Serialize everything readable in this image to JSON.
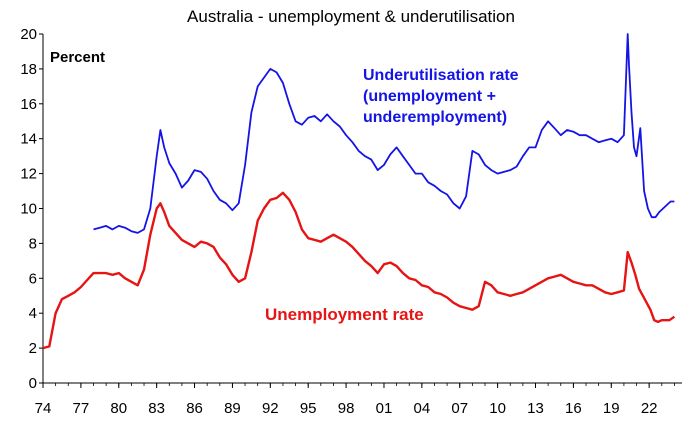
{
  "chart_data": {
    "type": "line",
    "title": "Australia - unemployment & underutilisation",
    "ylabel": "Percent",
    "xlabel": "",
    "ylim": [
      0,
      20
    ],
    "yticks": [
      0,
      2,
      4,
      6,
      8,
      10,
      12,
      14,
      16,
      18,
      20
    ],
    "xlim": [
      1974.0,
      2024.6
    ],
    "xticks": [
      {
        "year": 1974,
        "label": "74"
      },
      {
        "year": 1977,
        "label": "77"
      },
      {
        "year": 1980,
        "label": "80"
      },
      {
        "year": 1983,
        "label": "83"
      },
      {
        "year": 1986,
        "label": "86"
      },
      {
        "year": 1989,
        "label": "89"
      },
      {
        "year": 1992,
        "label": "92"
      },
      {
        "year": 1995,
        "label": "95"
      },
      {
        "year": 1998,
        "label": "98"
      },
      {
        "year": 2001,
        "label": "01"
      },
      {
        "year": 2004,
        "label": "04"
      },
      {
        "year": 2007,
        "label": "07"
      },
      {
        "year": 2010,
        "label": "10"
      },
      {
        "year": 2013,
        "label": "13"
      },
      {
        "year": 2016,
        "label": "16"
      },
      {
        "year": 2019,
        "label": "19"
      },
      {
        "year": 2022,
        "label": "22"
      }
    ],
    "grid": false,
    "series": [
      {
        "name": "Underutilisation rate (unemployment + underemployment)",
        "color": "#1414e6",
        "annotation_lines": [
          "Underutilisation rate",
          "(unemployment +",
          "underemployment)"
        ],
        "x": [
          1978.0,
          1978.5,
          1979.0,
          1979.5,
          1980.0,
          1980.5,
          1981.0,
          1981.5,
          1982.0,
          1982.5,
          1983.0,
          1983.3,
          1983.6,
          1984.0,
          1984.5,
          1985.0,
          1985.5,
          1986.0,
          1986.5,
          1987.0,
          1987.5,
          1988.0,
          1988.5,
          1989.0,
          1989.5,
          1990.0,
          1990.5,
          1991.0,
          1991.5,
          1992.0,
          1992.5,
          1993.0,
          1993.5,
          1994.0,
          1994.5,
          1995.0,
          1995.5,
          1996.0,
          1996.5,
          1997.0,
          1997.5,
          1998.0,
          1998.5,
          1999.0,
          1999.5,
          2000.0,
          2000.5,
          2001.0,
          2001.5,
          2002.0,
          2002.5,
          2003.0,
          2003.5,
          2004.0,
          2004.5,
          2005.0,
          2005.5,
          2006.0,
          2006.5,
          2007.0,
          2007.5,
          2008.0,
          2008.5,
          2009.0,
          2009.5,
          2010.0,
          2010.5,
          2011.0,
          2011.5,
          2012.0,
          2012.5,
          2013.0,
          2013.5,
          2014.0,
          2014.5,
          2015.0,
          2015.5,
          2016.0,
          2016.5,
          2017.0,
          2017.5,
          2018.0,
          2018.5,
          2019.0,
          2019.5,
          2020.0,
          2020.3,
          2020.4,
          2020.6,
          2020.8,
          2021.0,
          2021.3,
          2021.6,
          2021.9,
          2022.2,
          2022.5,
          2022.8,
          2023.1,
          2023.4,
          2023.7,
          2024.0
        ],
        "y": [
          8.8,
          8.9,
          9.0,
          8.8,
          9.0,
          8.9,
          8.7,
          8.6,
          8.8,
          10.0,
          13.0,
          14.5,
          13.5,
          12.6,
          12.0,
          11.2,
          11.6,
          12.2,
          12.1,
          11.7,
          11.0,
          10.5,
          10.3,
          9.9,
          10.3,
          12.5,
          15.5,
          17.0,
          17.5,
          18.0,
          17.8,
          17.2,
          16.0,
          15.0,
          14.8,
          15.2,
          15.3,
          15.0,
          15.4,
          15.0,
          14.7,
          14.2,
          13.8,
          13.3,
          13.0,
          12.8,
          12.2,
          12.5,
          13.1,
          13.5,
          13.0,
          12.5,
          12.0,
          12.0,
          11.5,
          11.3,
          11.0,
          10.8,
          10.3,
          10.0,
          10.7,
          13.3,
          13.1,
          12.5,
          12.2,
          12.0,
          12.1,
          12.2,
          12.4,
          13.0,
          13.5,
          13.5,
          14.5,
          15.0,
          14.6,
          14.2,
          14.5,
          14.4,
          14.2,
          14.2,
          14.0,
          13.8,
          13.9,
          14.0,
          13.8,
          14.2,
          20.0,
          18.2,
          15.5,
          13.5,
          13.0,
          14.6,
          11.0,
          10.0,
          9.5,
          9.5,
          9.8,
          10.0,
          10.2,
          10.4,
          10.4
        ]
      },
      {
        "name": "Unemployment rate",
        "color": "#e61414",
        "annotation_lines": [
          "Unemployment rate"
        ],
        "x": [
          1974.0,
          1974.5,
          1975.0,
          1975.5,
          1976.0,
          1976.5,
          1977.0,
          1977.5,
          1978.0,
          1978.5,
          1979.0,
          1979.5,
          1980.0,
          1980.5,
          1981.0,
          1981.5,
          1982.0,
          1982.5,
          1983.0,
          1983.3,
          1983.6,
          1984.0,
          1984.5,
          1985.0,
          1985.5,
          1986.0,
          1986.5,
          1987.0,
          1987.5,
          1988.0,
          1988.5,
          1989.0,
          1989.5,
          1990.0,
          1990.5,
          1991.0,
          1991.5,
          1992.0,
          1992.5,
          1993.0,
          1993.5,
          1994.0,
          1994.5,
          1995.0,
          1995.5,
          1996.0,
          1996.5,
          1997.0,
          1997.5,
          1998.0,
          1998.5,
          1999.0,
          1999.5,
          2000.0,
          2000.5,
          2001.0,
          2001.5,
          2002.0,
          2002.5,
          2003.0,
          2003.5,
          2004.0,
          2004.5,
          2005.0,
          2005.5,
          2006.0,
          2006.5,
          2007.0,
          2007.5,
          2008.0,
          2008.5,
          2009.0,
          2009.5,
          2010.0,
          2010.5,
          2011.0,
          2011.5,
          2012.0,
          2012.5,
          2013.0,
          2013.5,
          2014.0,
          2014.5,
          2015.0,
          2015.5,
          2016.0,
          2016.5,
          2017.0,
          2017.5,
          2018.0,
          2018.5,
          2019.0,
          2019.5,
          2020.0,
          2020.3,
          2020.6,
          2020.9,
          2021.2,
          2021.5,
          2021.8,
          2022.1,
          2022.4,
          2022.7,
          2023.0,
          2023.3,
          2023.6,
          2024.0
        ],
        "y": [
          2.0,
          2.1,
          4.0,
          4.8,
          5.0,
          5.2,
          5.5,
          5.9,
          6.3,
          6.3,
          6.3,
          6.2,
          6.3,
          6.0,
          5.8,
          5.6,
          6.5,
          8.5,
          10.0,
          10.3,
          9.8,
          9.0,
          8.6,
          8.2,
          8.0,
          7.8,
          8.1,
          8.0,
          7.8,
          7.2,
          6.8,
          6.2,
          5.8,
          6.0,
          7.5,
          9.3,
          10.0,
          10.5,
          10.6,
          10.9,
          10.5,
          9.8,
          8.8,
          8.3,
          8.2,
          8.1,
          8.3,
          8.5,
          8.3,
          8.1,
          7.8,
          7.4,
          7.0,
          6.7,
          6.3,
          6.8,
          6.9,
          6.7,
          6.3,
          6.0,
          5.9,
          5.6,
          5.5,
          5.2,
          5.1,
          4.9,
          4.6,
          4.4,
          4.3,
          4.2,
          4.4,
          5.8,
          5.6,
          5.2,
          5.1,
          5.0,
          5.1,
          5.2,
          5.4,
          5.6,
          5.8,
          6.0,
          6.1,
          6.2,
          6.0,
          5.8,
          5.7,
          5.6,
          5.6,
          5.4,
          5.2,
          5.1,
          5.2,
          5.3,
          7.5,
          6.9,
          6.2,
          5.4,
          5.0,
          4.6,
          4.2,
          3.6,
          3.5,
          3.6,
          3.6,
          3.6,
          3.8
        ]
      }
    ]
  }
}
